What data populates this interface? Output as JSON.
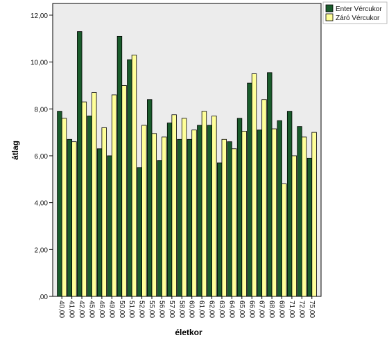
{
  "chart_data": {
    "type": "bar",
    "title": "",
    "xlabel": "életkor",
    "ylabel": "átlag",
    "ylim": [
      0,
      12.5
    ],
    "y_ticks": [
      ",00",
      "2,00",
      "4,00",
      "6,00",
      "8,00",
      "10,00",
      "12,00"
    ],
    "y_tick_values": [
      0,
      2,
      4,
      6,
      8,
      10,
      12
    ],
    "grid": false,
    "legend_position": "top-right",
    "categories": [
      "40,00",
      "41,00",
      "42,00",
      "45,00",
      "46,00",
      "49,00",
      "50,00",
      "51,00",
      "52,00",
      "55,00",
      "56,00",
      "57,00",
      "58,00",
      "60,00",
      "61,00",
      "62,00",
      "63,00",
      "64,00",
      "65,00",
      "66,00",
      "67,00",
      "68,00",
      "69,00",
      "71,00",
      "72,00",
      "75,00"
    ],
    "series": [
      {
        "name": "Enter Vércukor",
        "color": "#1a5c2c",
        "values": [
          7.9,
          6.7,
          11.3,
          7.7,
          6.3,
          6.0,
          11.1,
          10.1,
          5.5,
          8.4,
          5.8,
          7.4,
          6.7,
          6.7,
          7.3,
          7.3,
          5.7,
          6.6,
          7.6,
          9.1,
          7.1,
          9.55,
          7.5,
          7.9,
          7.25,
          5.9
        ]
      },
      {
        "name": "Záró Vércukor",
        "color": "#ffff99",
        "values": [
          7.6,
          6.6,
          8.3,
          8.7,
          7.2,
          8.6,
          9.0,
          10.3,
          7.3,
          6.95,
          6.8,
          7.75,
          7.6,
          7.1,
          7.9,
          7.7,
          6.7,
          6.3,
          7.05,
          9.5,
          8.4,
          7.15,
          4.8,
          6.0,
          6.8,
          7.0
        ]
      }
    ],
    "colors": {
      "plot_background": "#ececec",
      "bar_border": "#000000"
    }
  }
}
